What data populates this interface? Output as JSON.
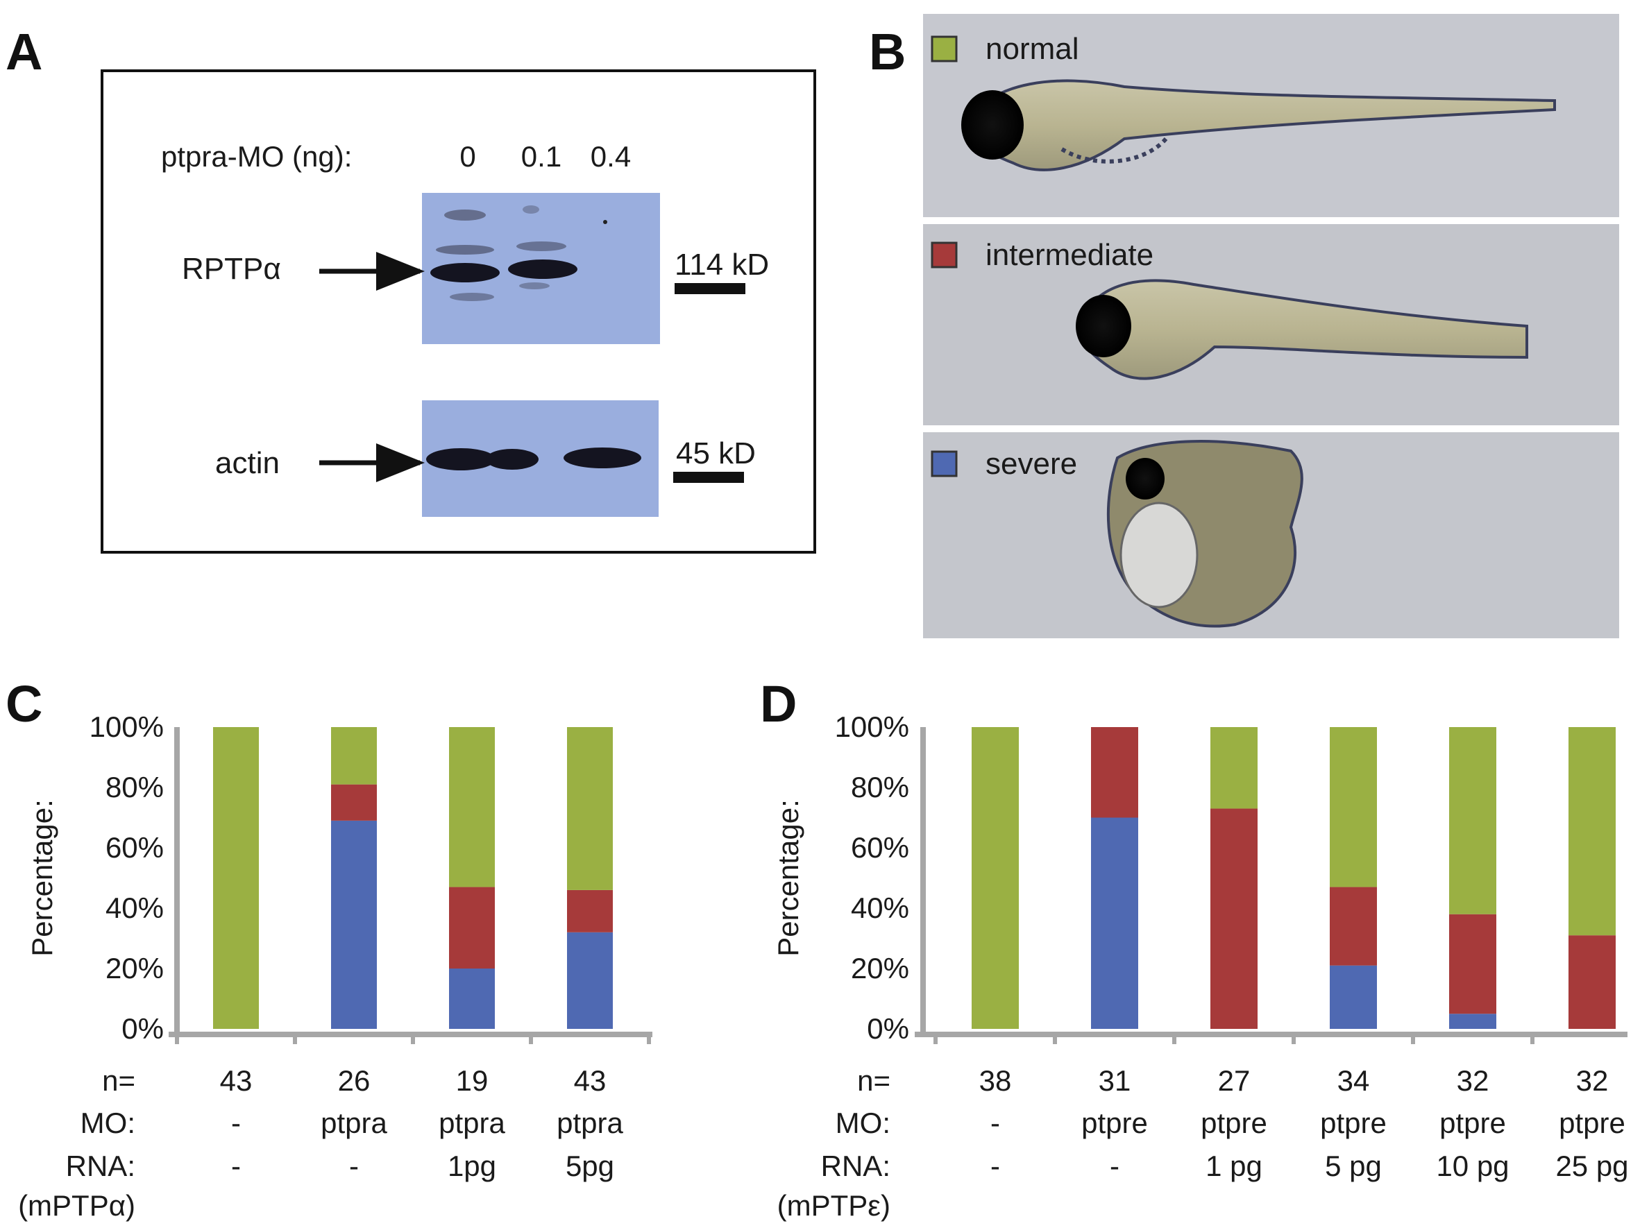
{
  "panels": {
    "A": "A",
    "B": "B",
    "C": "C",
    "D": "D"
  },
  "blot": {
    "dose_label": "ptpra-MO (ng):",
    "doses": [
      "0",
      "0.1",
      "0.4"
    ],
    "bands": [
      {
        "name": "RPTPα",
        "marker": "114 kD"
      },
      {
        "name": "actin",
        "marker": "45 kD"
      }
    ]
  },
  "phenotypes": [
    {
      "label": "normal",
      "color": "#9ab043"
    },
    {
      "label": "intermediate",
      "color": "#a63a3a"
    },
    {
      "label": "severe",
      "color": "#4f69b2"
    }
  ],
  "row_labels": {
    "C": [
      "n=",
      "MO:",
      "RNA:",
      "(mPTPα)"
    ],
    "D": [
      "n=",
      "MO:",
      "RNA:",
      "(mPTPε)"
    ]
  },
  "chart_data": [
    {
      "type": "bar",
      "stacked": true,
      "panel": "C",
      "ylabel": "Percentage:",
      "ylim": [
        0,
        100
      ],
      "yticks": [
        "0%",
        "20%",
        "40%",
        "60%",
        "80%",
        "100%"
      ],
      "categories": [
        {
          "n": "43",
          "mo": "-",
          "rna": "-"
        },
        {
          "n": "26",
          "mo": "ptpra",
          "rna": "-"
        },
        {
          "n": "19",
          "mo": "ptpra",
          "rna": "1pg"
        },
        {
          "n": "43",
          "mo": "ptpra",
          "rna": "5pg"
        }
      ],
      "series": [
        {
          "name": "severe",
          "color": "#4f69b2",
          "values": [
            0,
            69,
            20,
            32
          ]
        },
        {
          "name": "intermediate",
          "color": "#a63a3a",
          "values": [
            0,
            12,
            27,
            14
          ]
        },
        {
          "name": "normal",
          "color": "#9ab043",
          "values": [
            100,
            19,
            53,
            54
          ]
        }
      ]
    },
    {
      "type": "bar",
      "stacked": true,
      "panel": "D",
      "ylabel": "Percentage:",
      "ylim": [
        0,
        100
      ],
      "yticks": [
        "0%",
        "20%",
        "40%",
        "60%",
        "80%",
        "100%"
      ],
      "categories": [
        {
          "n": "38",
          "mo": "-",
          "rna": "-"
        },
        {
          "n": "31",
          "mo": "ptpre",
          "rna": "-"
        },
        {
          "n": "27",
          "mo": "ptpre",
          "rna": "1 pg"
        },
        {
          "n": "34",
          "mo": "ptpre",
          "rna": "5 pg"
        },
        {
          "n": "32",
          "mo": "ptpre",
          "rna": "10 pg"
        },
        {
          "n": "32",
          "mo": "ptpre",
          "rna": "25 pg"
        }
      ],
      "series": [
        {
          "name": "severe",
          "color": "#4f69b2",
          "values": [
            0,
            70,
            0,
            21,
            5,
            0
          ]
        },
        {
          "name": "intermediate",
          "color": "#a63a3a",
          "values": [
            0,
            30,
            73,
            26,
            33,
            31
          ]
        },
        {
          "name": "normal",
          "color": "#9ab043",
          "values": [
            100,
            0,
            27,
            53,
            62,
            69
          ]
        }
      ]
    }
  ]
}
